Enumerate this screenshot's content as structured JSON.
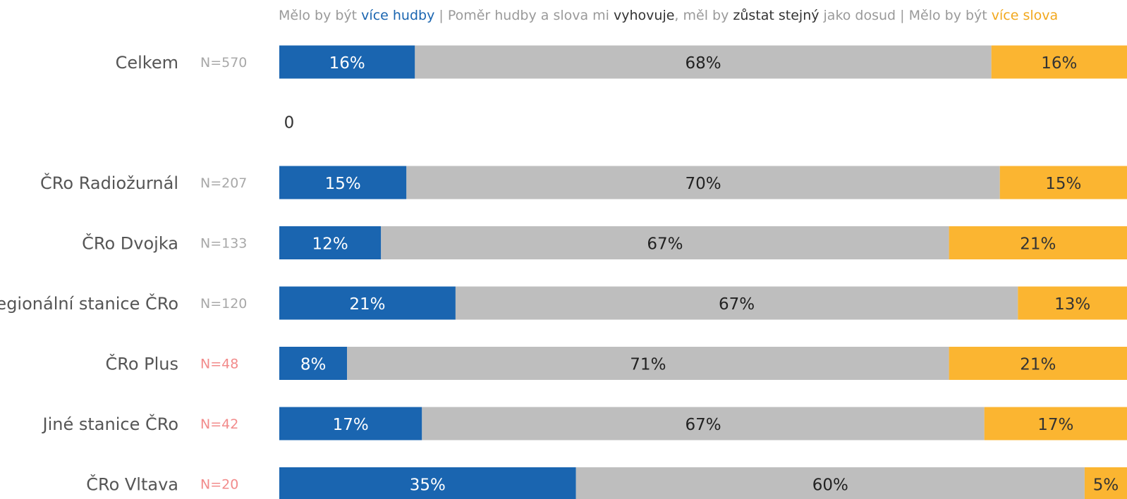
{
  "legend": {
    "group1_prefix": "Mělo by být ",
    "group1_key": "více hudby",
    "separator": " | ",
    "group2_part1": "Poměr hudby a slova mi ",
    "group2_key1": "vyhovuje",
    "group2_part2": ", měl by ",
    "group2_key2": "zůstat stejný",
    "group2_part3": " jako dosud",
    "group3_prefix": "Mělo by být ",
    "group3_key": "více slova"
  },
  "chart_data": {
    "type": "bar",
    "orientation": "horizontal",
    "stacked": true,
    "normalized": true,
    "categories": [
      "Celkem",
      "0",
      "ČRo Radiožurnál",
      "ČRo Dvojka",
      "Regionální stanice ČRo",
      "ČRo Plus",
      "Jiné stanice ČRo",
      "ČRo Vltava"
    ],
    "n_labels": [
      "N=570",
      "",
      "N=207",
      "N=133",
      "N=120",
      "N=48",
      "N=42",
      "N=20"
    ],
    "n_low_sample": [
      false,
      false,
      false,
      false,
      false,
      true,
      true,
      true
    ],
    "series": [
      {
        "key": "more_music",
        "color": "#1a65b0",
        "label_color": "#ffffff",
        "values": [
          16,
          null,
          15,
          12,
          21,
          8,
          17,
          35
        ],
        "labels": [
          "16%",
          "",
          "15%",
          "12%",
          "21%",
          "8%",
          "17%",
          "35%"
        ]
      },
      {
        "key": "same",
        "color": "#bebebe",
        "label_color": "#222222",
        "values": [
          68,
          null,
          70,
          67,
          67,
          71,
          67,
          60
        ],
        "labels": [
          "68%",
          "",
          "70%",
          "67%",
          "67%",
          "71%",
          "67%",
          "60%"
        ]
      },
      {
        "key": "more_speech",
        "color": "#fbb531",
        "label_color": "#333333",
        "values": [
          16,
          null,
          15,
          21,
          13,
          21,
          17,
          5
        ],
        "labels": [
          "16%",
          "",
          "15%",
          "21%",
          "13%",
          "21%",
          "17%",
          "5%"
        ]
      }
    ],
    "gap_label": "0",
    "colors": {
      "n_normal": "#a8a8a8",
      "n_low": "#f28b8b"
    }
  }
}
